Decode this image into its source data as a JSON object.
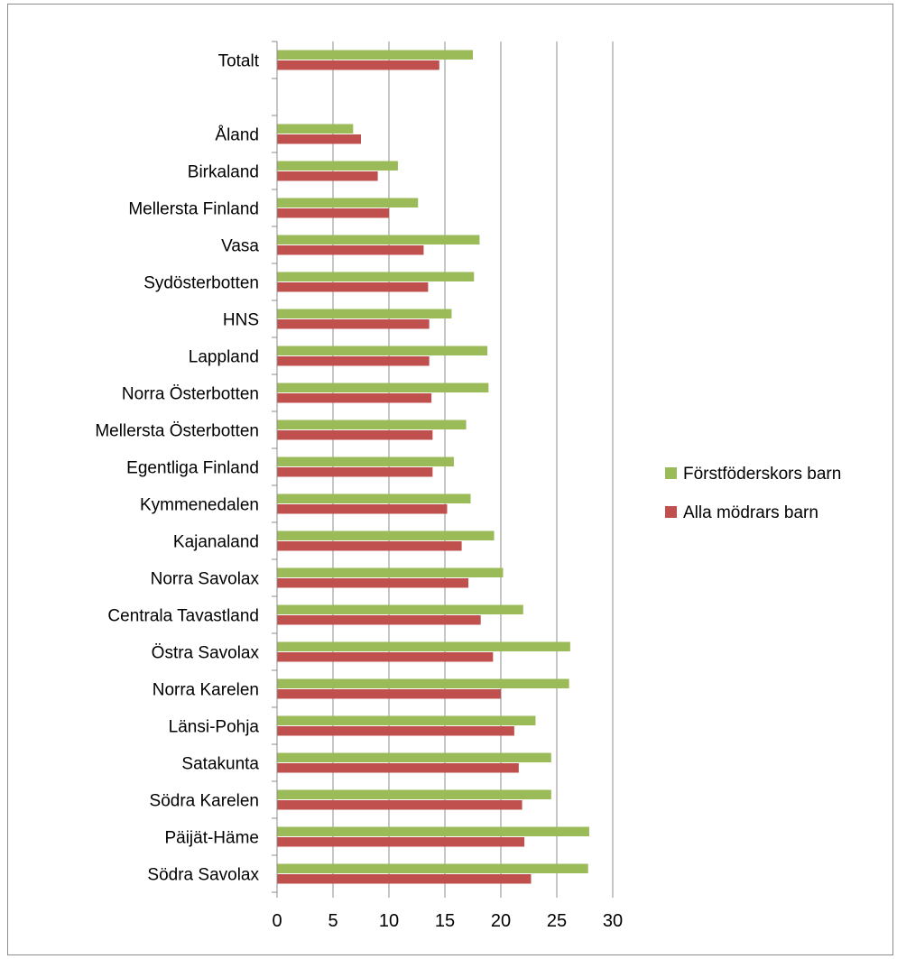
{
  "chart_data": {
    "type": "bar",
    "orientation": "horizontal",
    "categories": [
      "Totalt",
      "",
      "Åland",
      "Birkaland",
      "Mellersta Finland",
      "Vasa",
      "Sydösterbotten",
      "HNS",
      "Lappland",
      "Norra Österbotten",
      "Mellersta Österbotten",
      "Egentliga Finland",
      "Kymmenedalen",
      "Kajanaland",
      "Norra Savolax",
      "Centrala Tavastland",
      "Östra Savolax",
      "Norra Karelen",
      "Länsi-Pohja",
      "Satakunta",
      "Södra Karelen",
      "Päijät-Häme",
      "Södra Savolax"
    ],
    "series": [
      {
        "name": "Förstföderskors barn",
        "color": "#9bbb59",
        "values": [
          17.5,
          null,
          6.8,
          10.8,
          12.6,
          18.1,
          17.6,
          15.6,
          18.8,
          18.9,
          16.9,
          15.8,
          17.3,
          19.4,
          20.2,
          22.0,
          26.2,
          26.1,
          23.1,
          24.5,
          24.5,
          27.9,
          27.8
        ]
      },
      {
        "name": "Alla mödrars barn",
        "color": "#c0504d",
        "values": [
          14.5,
          null,
          7.5,
          9.0,
          10.0,
          13.1,
          13.5,
          13.6,
          13.6,
          13.8,
          13.9,
          13.9,
          15.2,
          16.5,
          17.1,
          18.2,
          19.3,
          20.0,
          21.2,
          21.6,
          21.9,
          22.1,
          22.7
        ]
      }
    ],
    "xlim": [
      0,
      30
    ],
    "xticks": [
      "0",
      "5",
      "10",
      "15",
      "20",
      "25",
      "30"
    ],
    "grid": "vertical",
    "legend_position": "right"
  }
}
